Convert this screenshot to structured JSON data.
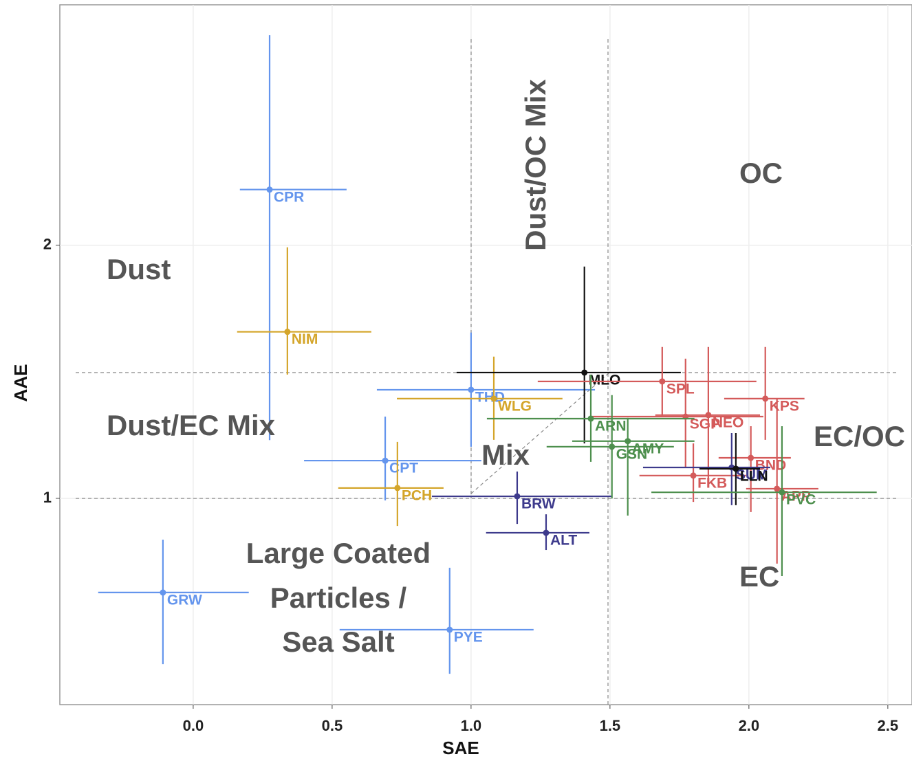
{
  "chart_data": {
    "type": "scatter",
    "x_label": "SAE",
    "y_label": "AAE",
    "xlim": [
      -0.48,
      2.587
    ],
    "ylim": [
      0.185,
      2.95
    ],
    "xticks": [
      {
        "value": 0,
        "label": "0.0"
      },
      0.5,
      {
        "value": 1,
        "label": "1.0"
      },
      1.5,
      {
        "value": 2,
        "label": "2.0"
      },
      2.5
    ],
    "yticks": [
      1,
      2
    ],
    "grid": true,
    "points": [
      {
        "name": "CPR",
        "color": "#6495ed",
        "x": 0.275,
        "y": 2.22,
        "xmin": 0.168,
        "xmax": 0.552,
        "ymin": 1.23,
        "ymax": 2.83
      },
      {
        "name": "NIM",
        "color": "#d4a52a",
        "x": 0.339,
        "y": 1.658,
        "xmin": 0.158,
        "xmax": 0.641,
        "ymin": 1.489,
        "ymax": 1.992
      },
      {
        "name": "GRW",
        "color": "#6495ed",
        "x": -0.109,
        "y": 0.628,
        "xmin": -0.342,
        "xmax": 0.2,
        "ymin": 0.345,
        "ymax": 0.837
      },
      {
        "name": "PYE",
        "color": "#6495ed",
        "x": 0.923,
        "y": 0.481,
        "xmin": 0.527,
        "xmax": 1.225,
        "ymin": 0.307,
        "ymax": 0.726
      },
      {
        "name": "CPT",
        "color": "#6495ed",
        "x": 0.691,
        "y": 1.149,
        "xmin": 0.399,
        "xmax": 1.037,
        "ymin": 0.992,
        "ymax": 1.323
      },
      {
        "name": "PCH",
        "color": "#d4a52a",
        "x": 0.735,
        "y": 1.041,
        "xmin": 0.522,
        "xmax": 0.901,
        "ymin": 0.891,
        "ymax": 1.223
      },
      {
        "name": "THD",
        "color": "#6495ed",
        "x": 1.0,
        "y": 1.429,
        "xmin": 0.661,
        "xmax": 1.446,
        "ymin": 1.204,
        "ymax": 1.655
      },
      {
        "name": "WLG",
        "color": "#d4a52a",
        "x": 1.082,
        "y": 1.394,
        "xmin": 0.733,
        "xmax": 1.329,
        "ymin": 1.231,
        "ymax": 1.56
      },
      {
        "name": "BRW",
        "color": "#3d3a8c",
        "x": 1.166,
        "y": 1.008,
        "xmin": 0.859,
        "xmax": 1.507,
        "ymin": 0.899,
        "ymax": 1.106
      },
      {
        "name": "ALT",
        "color": "#3d3a8c",
        "x": 1.27,
        "y": 0.864,
        "xmin": 1.054,
        "xmax": 1.426,
        "ymin": 0.796,
        "ymax": 0.937
      },
      {
        "name": "MLO",
        "color": "#111111",
        "x": 1.408,
        "y": 1.497,
        "xmin": 0.948,
        "xmax": 1.755,
        "ymin": 1.217,
        "ymax": 1.916
      },
      {
        "name": "SPL",
        "color": "#d45a5a",
        "x": 1.688,
        "y": 1.462,
        "xmin": 1.24,
        "xmax": 2.027,
        "ymin": 1.326,
        "ymax": 1.598
      },
      {
        "name": "KPS",
        "color": "#d45a5a",
        "x": 2.059,
        "y": 1.394,
        "xmin": 1.911,
        "xmax": 2.2,
        "ymin": 1.231,
        "ymax": 1.598
      },
      {
        "name": "SGP",
        "color": "#d45a5a",
        "x": 1.772,
        "y": 1.323,
        "xmin": 1.426,
        "xmax": 2.052,
        "ymin": 1.122,
        "ymax": 1.552
      },
      {
        "name": "NEO",
        "color": "#d45a5a",
        "x": 1.854,
        "y": 1.329,
        "xmin": 1.663,
        "xmax": 2.04,
        "ymin": 1.068,
        "ymax": 1.598
      },
      {
        "name": "ARN",
        "color": "#4d8f4d",
        "x": 1.431,
        "y": 1.315,
        "xmin": 1.057,
        "xmax": 1.804,
        "ymin": 1.144,
        "ymax": 1.489
      },
      {
        "name": "AMY",
        "color": "#4d8f4d",
        "x": 1.564,
        "y": 1.226,
        "xmin": 1.364,
        "xmax": 1.804,
        "ymin": 0.932,
        "ymax": 1.318
      },
      {
        "name": "GSN",
        "color": "#4d8f4d",
        "x": 1.507,
        "y": 1.204,
        "xmin": 1.272,
        "xmax": 1.73,
        "ymin": 1.0,
        "ymax": 1.408
      },
      {
        "name": "BND",
        "color": "#d45a5a",
        "x": 2.007,
        "y": 1.16,
        "xmin": 1.891,
        "xmax": 2.151,
        "ymin": 0.946,
        "ymax": 1.285
      },
      {
        "name": "FKB",
        "color": "#d45a5a",
        "x": 1.8,
        "y": 1.09,
        "xmin": 1.606,
        "xmax": 1.99,
        "ymin": 0.986,
        "ymax": 1.217
      },
      {
        "name": "SUM",
        "color": "#3d3a8c",
        "x": 1.938,
        "y": 1.122,
        "xmin": 1.619,
        "xmax": 2.077,
        "ymin": 0.973,
        "ymax": 1.258
      },
      {
        "name": "LLN",
        "color": "#111111",
        "x": 1.953,
        "y": 1.117,
        "xmin": 1.822,
        "xmax": 2.04,
        "ymin": 0.973,
        "ymax": 1.258
      },
      {
        "name": "APP",
        "color": "#d45a5a",
        "x": 2.101,
        "y": 1.038,
        "xmin": 1.99,
        "xmax": 2.25,
        "ymin": 0.742,
        "ymax": 1.394
      },
      {
        "name": "PVC",
        "color": "#4d8f4d",
        "x": 2.119,
        "y": 1.024,
        "xmin": 1.649,
        "xmax": 2.46,
        "ymin": 0.693,
        "ymax": 1.285
      }
    ],
    "annotations": [
      "Dust",
      "Dust/EC Mix",
      "Dust/OC Mix",
      "OC",
      "EC/OC",
      "Mix",
      "EC",
      "Large Coated",
      "Particles /",
      "Sea Salt"
    ]
  }
}
